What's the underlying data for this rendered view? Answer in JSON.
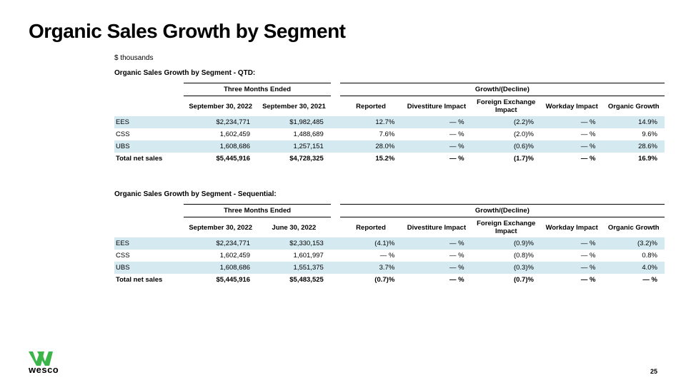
{
  "title": "Organic Sales Growth by Segment",
  "units": "$ thousands",
  "page_number": "25",
  "logo_text": "wesco",
  "logo_color": "#3bb54a",
  "alt_row_bg": "#d4e9f0",
  "qtd": {
    "section_title": "Organic Sales Growth by Segment - QTD:",
    "period_group": "Three Months Ended",
    "growth_group": "Growth/(Decline)",
    "col1": "September 30, 2022",
    "col2": "September 30, 2021",
    "gcols": {
      "reported": "Reported",
      "divest": "Divestiture Impact",
      "fx": "Foreign Exchange Impact",
      "workday": "Workday Impact",
      "organic": "Organic Growth"
    },
    "rows": [
      {
        "label": "EES",
        "v1": "$2,234,771",
        "v2": "$1,982,485",
        "r": "12.7%",
        "d": "—   %",
        "f": "(2.2)%",
        "w": "—   %",
        "o": "14.9%",
        "alt": true
      },
      {
        "label": "CSS",
        "v1": "1,602,459",
        "v2": "1,488,689",
        "r": "7.6%",
        "d": "—   %",
        "f": "(2.0)%",
        "w": "—   %",
        "o": "9.6%",
        "alt": false
      },
      {
        "label": "UBS",
        "v1": "1,608,686",
        "v2": "1,257,151",
        "r": "28.0%",
        "d": "—   %",
        "f": "(0.6)%",
        "w": "—   %",
        "o": "28.6%",
        "alt": true
      }
    ],
    "total": {
      "label": "Total net sales",
      "v1": "$5,445,916",
      "v2": "$4,728,325",
      "r": "15.2%",
      "d": "—   %",
      "f": "(1.7)%",
      "w": "—   %",
      "o": "16.9%"
    }
  },
  "seq": {
    "section_title": "Organic Sales Growth by Segment - Sequential:",
    "period_group": "Three Months Ended",
    "growth_group": "Growth/(Decline)",
    "col1": "September 30, 2022",
    "col2": "June 30, 2022",
    "gcols": {
      "reported": "Reported",
      "divest": "Divestiture Impact",
      "fx": "Foreign Exchange Impact",
      "workday": "Workday Impact",
      "organic": "Organic Growth"
    },
    "rows": [
      {
        "label": "EES",
        "v1": "$2,234,771",
        "v2": "$2,330,153",
        "r": "(4.1)%",
        "d": "—   %",
        "f": "(0.9)%",
        "w": "—   %",
        "o": "(3.2)%",
        "alt": true
      },
      {
        "label": "CSS",
        "v1": "1,602,459",
        "v2": "1,601,997",
        "r": "—   %",
        "d": "—   %",
        "f": "(0.8)%",
        "w": "—   %",
        "o": "0.8%",
        "alt": false
      },
      {
        "label": "UBS",
        "v1": "1,608,686",
        "v2": "1,551,375",
        "r": "3.7%",
        "d": "—   %",
        "f": "(0.3)%",
        "w": "—   %",
        "o": "4.0%",
        "alt": true
      }
    ],
    "total": {
      "label": "Total net sales",
      "v1": "$5,445,916",
      "v2": "$5,483,525",
      "r": "(0.7)%",
      "d": "—   %",
      "f": "(0.7)%",
      "w": "—   %",
      "o": "— %"
    }
  }
}
